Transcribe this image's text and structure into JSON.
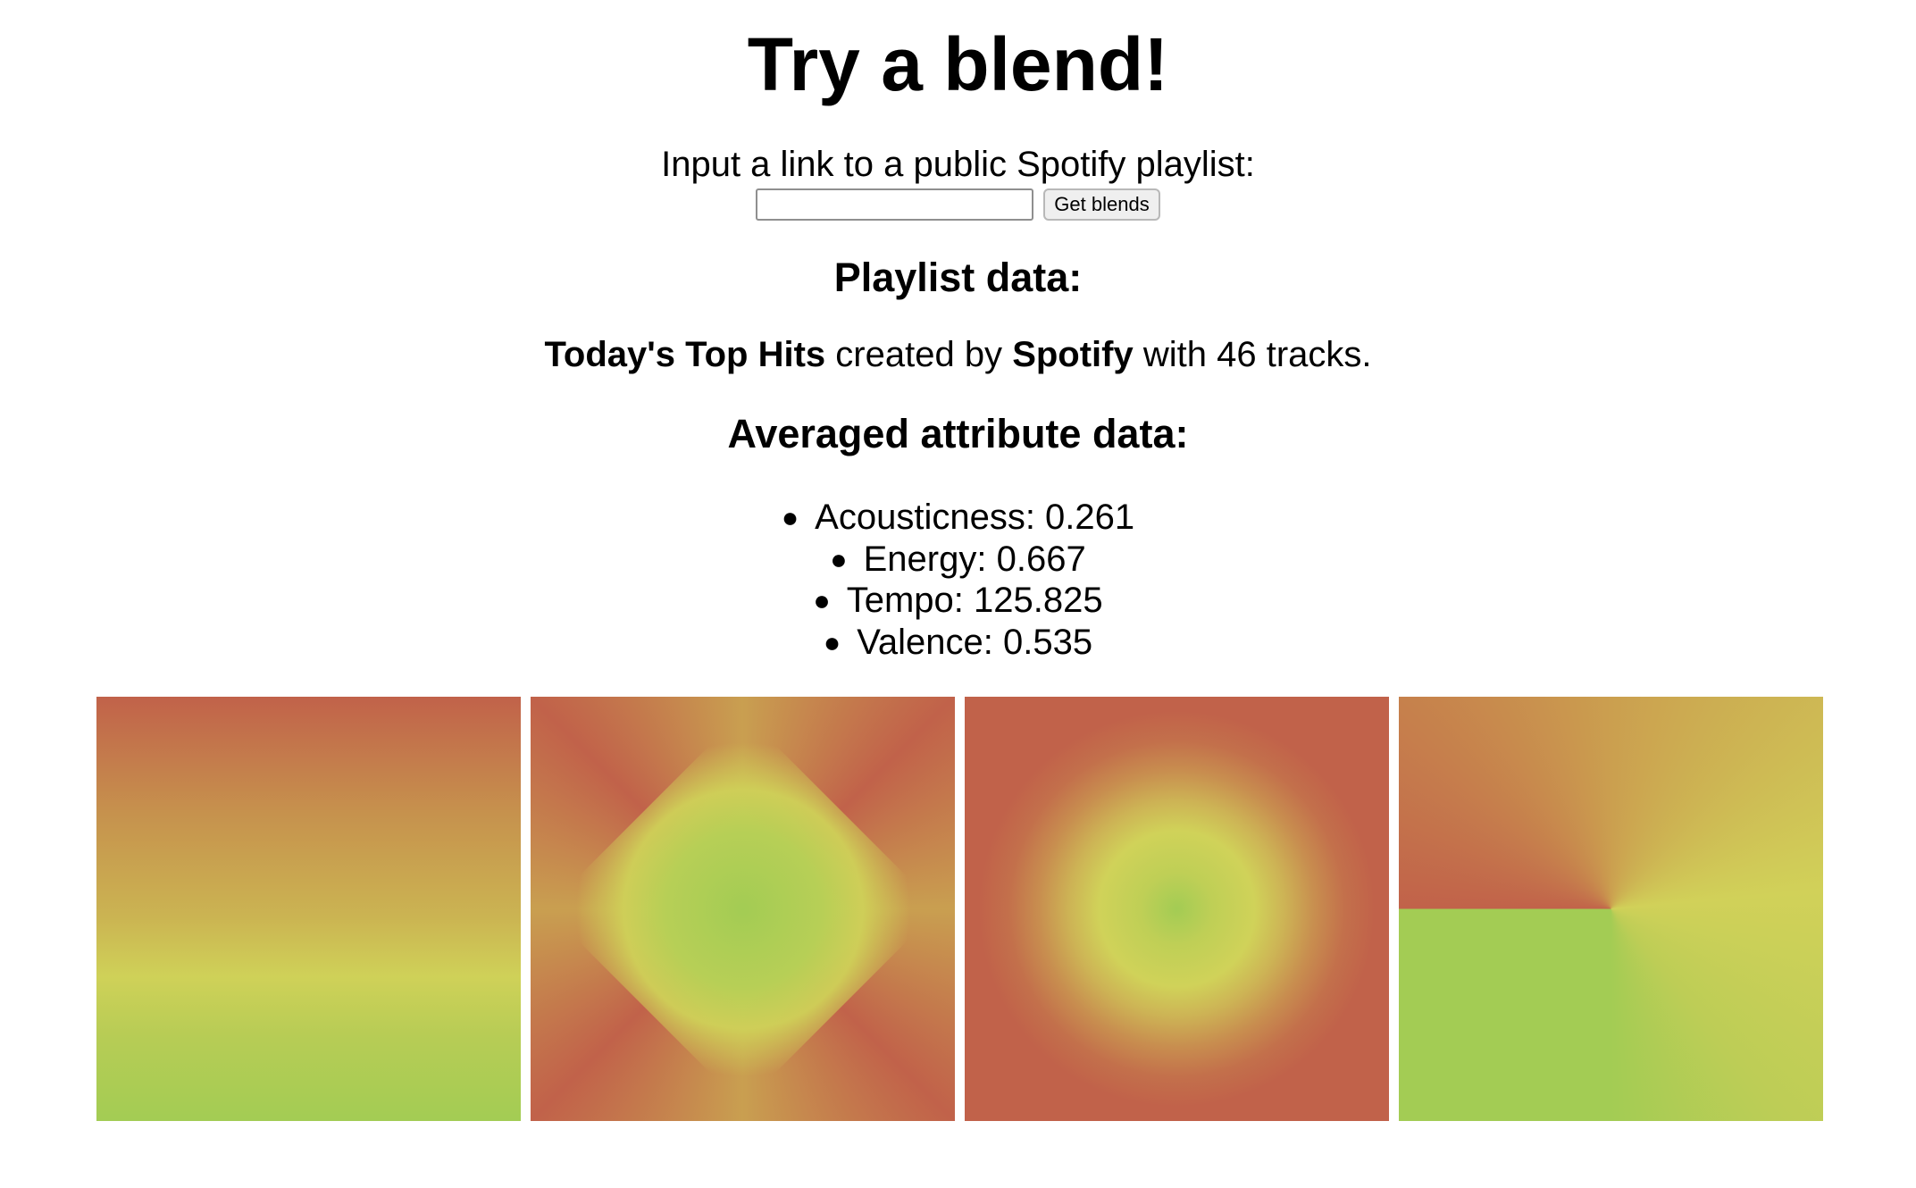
{
  "header": {
    "title": "Try a blend!"
  },
  "form": {
    "prompt": "Input a link to a public Spotify playlist:",
    "input_value": "",
    "button_label": "Get blends"
  },
  "playlist": {
    "heading": "Playlist data:",
    "name": "Today's Top Hits",
    "created_by_text": "created by",
    "owner": "Spotify",
    "with_text": "with",
    "track_count": "46",
    "tracks_text": "tracks."
  },
  "attributes": {
    "heading": "Averaged attribute data:",
    "items": [
      {
        "label": "Acousticness: 0.261"
      },
      {
        "label": "Energy: 0.667"
      },
      {
        "label": "Tempo: 125.825"
      },
      {
        "label": "Valence: 0.535"
      }
    ]
  },
  "blends": {
    "colors": {
      "red": "#c1624a",
      "orange": "#c6914d",
      "yellow": "#d0d259",
      "green": "#a3cc54"
    },
    "swatches": [
      {
        "style": "linear"
      },
      {
        "style": "diamond"
      },
      {
        "style": "radial"
      },
      {
        "style": "conic"
      }
    ]
  }
}
